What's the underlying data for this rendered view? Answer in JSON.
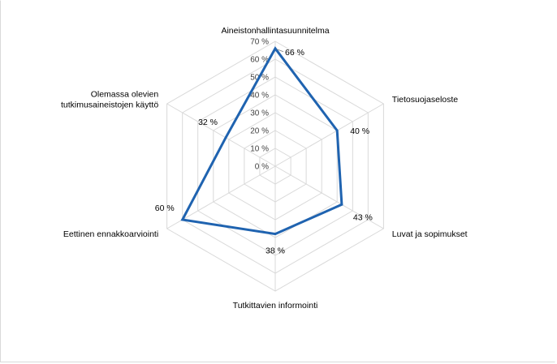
{
  "chart_data": {
    "type": "radar",
    "title": "",
    "categories": [
      [
        "Aineistonhallintasuunnitelma"
      ],
      [
        "Tietosuojaseloste"
      ],
      [
        "Luvat ja sopimukset"
      ],
      [
        "Tutkittavien informointi"
      ],
      [
        "Eettinen ennakkoarviointi"
      ],
      [
        "Olemassa olevien",
        "tutkimusaineistojen käyttö"
      ]
    ],
    "series": [
      {
        "values": [
          66,
          40,
          43,
          38,
          60,
          32
        ],
        "value_labels": [
          "66 %",
          "40 %",
          "43 %",
          "38 %",
          "60 %",
          "32 %"
        ]
      }
    ],
    "r_ticks": [
      0,
      10,
      20,
      30,
      40,
      50,
      60,
      70
    ],
    "r_tick_labels": [
      "0 %",
      "10 %",
      "20 %",
      "30 %",
      "40 %",
      "50 %",
      "60 %",
      "70 %"
    ],
    "rlim": [
      0,
      70
    ],
    "grid": true,
    "legend": "none",
    "colors": {
      "series": "#1f63b0",
      "grid": "#d9d9d9"
    }
  }
}
